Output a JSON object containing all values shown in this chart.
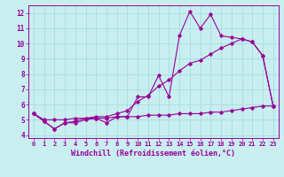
{
  "xlabel": "Windchill (Refroidissement éolien,°C)",
  "background_color": "#c8eef0",
  "grid_color": "#aadddf",
  "line_color": "#990099",
  "x": [
    0,
    1,
    2,
    3,
    4,
    5,
    6,
    7,
    8,
    9,
    10,
    11,
    12,
    13,
    14,
    15,
    16,
    17,
    18,
    19,
    20,
    21,
    22,
    23
  ],
  "line1": [
    5.4,
    4.9,
    4.4,
    4.8,
    4.8,
    5.0,
    5.1,
    4.8,
    5.2,
    5.2,
    6.5,
    6.5,
    7.9,
    6.5,
    10.5,
    12.1,
    11.0,
    11.9,
    10.5,
    10.4,
    10.3,
    10.1,
    9.2,
    5.9
  ],
  "line2": [
    5.4,
    4.9,
    4.4,
    4.8,
    4.9,
    5.1,
    5.2,
    5.2,
    5.4,
    5.6,
    6.2,
    6.6,
    7.2,
    7.6,
    8.2,
    8.7,
    8.9,
    9.3,
    9.7,
    10.0,
    10.3,
    10.1,
    9.2,
    5.9
  ],
  "line3": [
    5.4,
    5.0,
    5.0,
    5.0,
    5.1,
    5.1,
    5.1,
    5.1,
    5.2,
    5.2,
    5.2,
    5.3,
    5.3,
    5.3,
    5.4,
    5.4,
    5.4,
    5.5,
    5.5,
    5.6,
    5.7,
    5.8,
    5.9,
    5.9
  ],
  "xlim": [
    -0.5,
    23.5
  ],
  "ylim": [
    3.8,
    12.5
  ],
  "yticks": [
    4,
    5,
    6,
    7,
    8,
    9,
    10,
    11,
    12
  ],
  "xticks": [
    0,
    1,
    2,
    3,
    4,
    5,
    6,
    7,
    8,
    9,
    10,
    11,
    12,
    13,
    14,
    15,
    16,
    17,
    18,
    19,
    20,
    21,
    22,
    23
  ],
  "tick_fontsize": 5.0,
  "xlabel_fontsize": 6.0
}
